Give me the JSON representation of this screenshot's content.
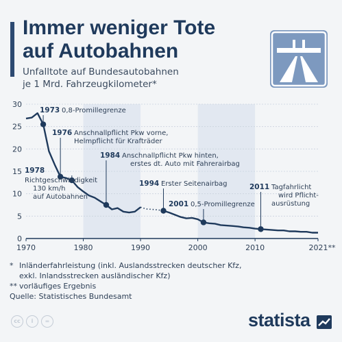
{
  "header": {
    "title_line1": "Immer weniger Tote",
    "title_line2": "auf Autobahnen",
    "subtitle_line1": "Unfalltote auf Bundesautobahnen",
    "subtitle_line2": "je 1 Mrd. Fahrzeugkilometer*"
  },
  "icon": {
    "name": "autobahn-road-sign-icon",
    "background": "#7d99bf",
    "foreground": "#ffffff"
  },
  "chart_data": {
    "type": "line",
    "x": [
      1970,
      1971,
      1972,
      1973,
      1974,
      1975,
      1976,
      1977,
      1978,
      1979,
      1980,
      1981,
      1982,
      1983,
      1984,
      1985,
      1986,
      1987,
      1988,
      1989,
      1990,
      1991,
      1992,
      1993,
      1994,
      1995,
      1996,
      1997,
      1998,
      1999,
      2000,
      2001,
      2002,
      2003,
      2004,
      2005,
      2006,
      2007,
      2008,
      2009,
      2010,
      2011,
      2012,
      2013,
      2014,
      2015,
      2016,
      2017,
      2018,
      2019,
      2020,
      2021
    ],
    "y": [
      26.8,
      27.0,
      28.0,
      25.5,
      19.5,
      16.5,
      13.8,
      13.5,
      13.0,
      11.5,
      10.5,
      9.6,
      9.1,
      8.3,
      7.5,
      6.5,
      6.8,
      6.0,
      5.8,
      6.0,
      7.0,
      6.6,
      6.5,
      6.4,
      6.2,
      5.8,
      5.3,
      4.8,
      4.5,
      4.6,
      4.3,
      3.6,
      3.4,
      3.3,
      3.0,
      2.9,
      2.8,
      2.7,
      2.5,
      2.4,
      2.2,
      2.1,
      2.0,
      1.9,
      1.8,
      1.8,
      1.6,
      1.6,
      1.5,
      1.5,
      1.3,
      1.3
    ],
    "gap_years": [
      1990,
      1991
    ],
    "xlim": [
      1970,
      2021
    ],
    "ylim": [
      0,
      30
    ],
    "y_ticks": [
      0,
      5,
      10,
      15,
      20,
      25,
      30
    ],
    "x_ticks": [
      "1970",
      "1980",
      "1990",
      "2000",
      "2010",
      "2021**"
    ],
    "x_tick_values": [
      1970,
      1980,
      1990,
      2000,
      2010,
      2021
    ],
    "grid": true,
    "line_color": "#1f3a5c",
    "band_color": "#e2e8f1",
    "annotations": [
      {
        "year": 1973,
        "value": 25.5,
        "year_label": "1973",
        "text": "0,8-Promillegrenze"
      },
      {
        "year": 1976,
        "value": 13.8,
        "year_label": "1976",
        "text": "Anschnallpflicht Pkw vorne,\nHelmpflicht für Krafträder"
      },
      {
        "year": 1978,
        "value": 13.0,
        "year_label": "1978",
        "text": "Richtgeschwindigkeit\n130 km/h\nauf Autobahnen"
      },
      {
        "year": 1984,
        "value": 7.5,
        "year_label": "1984",
        "text": "Anschnallpflicht Pkw hinten,\nerstes dt. Auto mit Fahrerairbag"
      },
      {
        "year": 1994,
        "value": 6.2,
        "year_label": "1994",
        "text": "Erster Seitenairbag"
      },
      {
        "year": 2001,
        "value": 3.6,
        "year_label": "2001",
        "text": "0,5-Promillegrenze"
      },
      {
        "year": 2011,
        "value": 2.1,
        "year_label": "2011",
        "text": "Tagfahrlicht\nwird Pflicht-\nausrüstung"
      }
    ]
  },
  "notes": [
    {
      "mark": "*",
      "text": "Inländerfahrleistung (inkl. Auslandsstrecken deutscher Kfz,\nexkl. Inlandsstrecken ausländischer Kfz)"
    },
    {
      "mark": "**",
      "text": "vorläufiges Ergebnis"
    },
    {
      "mark": "",
      "text": "Quelle: Statistisches Bundesamt"
    }
  ],
  "footer": {
    "cc_icons": [
      "cc",
      "i",
      "="
    ],
    "brand": "statista"
  }
}
